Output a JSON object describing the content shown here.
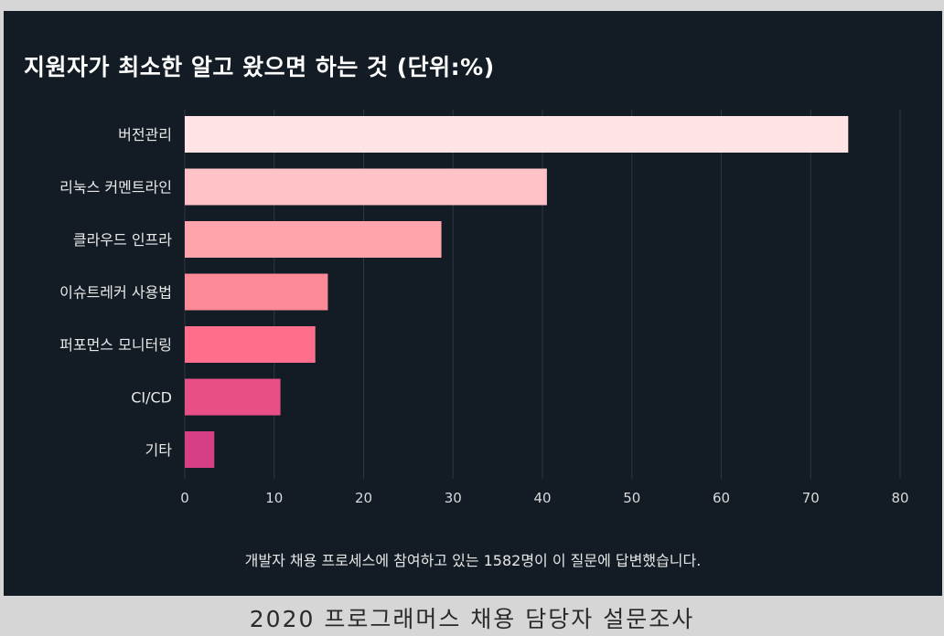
{
  "chart_data": {
    "type": "bar",
    "orientation": "horizontal",
    "title": "지원자가 최소한 알고 왔으면 하는 것 (단위:%)",
    "categories": [
      "버전관리",
      "리눅스 커멘트라인",
      "클라우드 인프라",
      "이슈트레커 사용법",
      "퍼포먼스 모니터링",
      "CI/CD",
      "기타"
    ],
    "values": [
      74.2,
      40.5,
      28.7,
      16.0,
      14.6,
      10.7,
      3.3
    ],
    "xlim": [
      0,
      80
    ],
    "xticks": [
      0,
      10,
      20,
      30,
      40,
      50,
      60,
      70,
      80
    ],
    "grid": true,
    "colors": [
      "#ffe3e5",
      "#ffc2c6",
      "#ffa4ab",
      "#ff8a97",
      "#ff6e8c",
      "#e84f86",
      "#d63f85"
    ]
  },
  "note": "개발자 채용 프로세스에 참여하고 있는 1582명이 이 질문에 답변했습니다.",
  "caption": "2020 프로그래머스 채용 담당자 설문조사",
  "colors": {
    "panel_background": "#131c24",
    "outer_background": "#d6d6d6",
    "grid": "#2c3640"
  }
}
